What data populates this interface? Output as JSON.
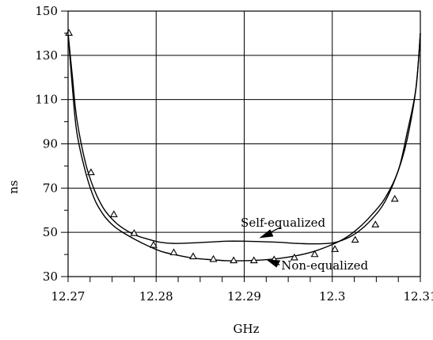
{
  "chart_data": {
    "type": "line",
    "title": "",
    "xlabel": "GHz",
    "ylabel": "ns",
    "xlim": [
      12.27,
      12.31
    ],
    "ylim": [
      30,
      150
    ],
    "x_ticks": [
      12.27,
      12.28,
      12.29,
      12.3,
      12.31
    ],
    "x_tick_labels": [
      "12.27",
      "12.28",
      "12.29",
      "12.3",
      "12.31"
    ],
    "y_ticks": [
      30,
      50,
      70,
      90,
      110,
      130,
      150
    ],
    "y_tick_labels": [
      "30",
      "50",
      "70",
      "90",
      "110",
      "130",
      "150"
    ],
    "grid": true,
    "series": [
      {
        "name": "Self-equalized",
        "line_color": "#000000",
        "marker": "none",
        "x": [
          12.27,
          12.2705,
          12.271,
          12.272,
          12.273,
          12.274,
          12.275,
          12.276,
          12.2775,
          12.279,
          12.2805,
          12.282,
          12.284,
          12.286,
          12.288,
          12.29,
          12.292,
          12.294,
          12.296,
          12.298,
          12.3,
          12.3015,
          12.303,
          12.3045,
          12.306,
          12.3075,
          12.3085,
          12.3095,
          12.31
        ],
        "y": [
          140,
          120,
          101,
          81,
          69,
          61,
          56,
          52.5,
          49,
          47,
          45.5,
          45,
          45.2,
          45.6,
          46,
          46,
          45.8,
          45.5,
          45,
          44.8,
          45.2,
          47,
          50.5,
          56,
          64,
          78,
          92,
          115,
          140
        ]
      },
      {
        "name": "Non-equalized",
        "line_color": "#000000",
        "marker": "triangle",
        "x": [
          12.27,
          12.2705,
          12.271,
          12.272,
          12.273,
          12.274,
          12.275,
          12.276,
          12.2775,
          12.279,
          12.2805,
          12.282,
          12.284,
          12.286,
          12.288,
          12.29,
          12.292,
          12.294,
          12.296,
          12.298,
          12.3,
          12.3015,
          12.303,
          12.3045,
          12.306,
          12.3075,
          12.3085,
          12.3095,
          12.31
        ],
        "y": [
          140,
          115,
          95,
          77,
          65,
          58,
          53.5,
          50.5,
          47,
          44,
          41.5,
          40,
          38.5,
          37.7,
          37.2,
          37.2,
          37.5,
          38.2,
          39.5,
          41.5,
          44.5,
          47.5,
          52,
          58,
          65.5,
          78,
          95,
          115,
          140
        ],
        "marker_x": [
          12.2701,
          12.2726,
          12.2752,
          12.2775,
          12.2797,
          12.282,
          12.2842,
          12.2865,
          12.2888,
          12.2911,
          12.2934,
          12.2957,
          12.298,
          12.3003,
          12.3026,
          12.3049,
          12.3071
        ],
        "marker_y": [
          140,
          77,
          58,
          49.5,
          44.2,
          40.8,
          39,
          37.8,
          37.2,
          37.2,
          37.6,
          38.5,
          40,
          42.3,
          46.5,
          53.4,
          65
        ]
      }
    ],
    "annotations": [
      {
        "text": "Self-equalized",
        "points_to_x": 12.2917,
        "points_to_y": 46
      },
      {
        "text": "Non-equalized",
        "points_to_x": 12.2925,
        "points_to_y": 38.4
      }
    ]
  }
}
